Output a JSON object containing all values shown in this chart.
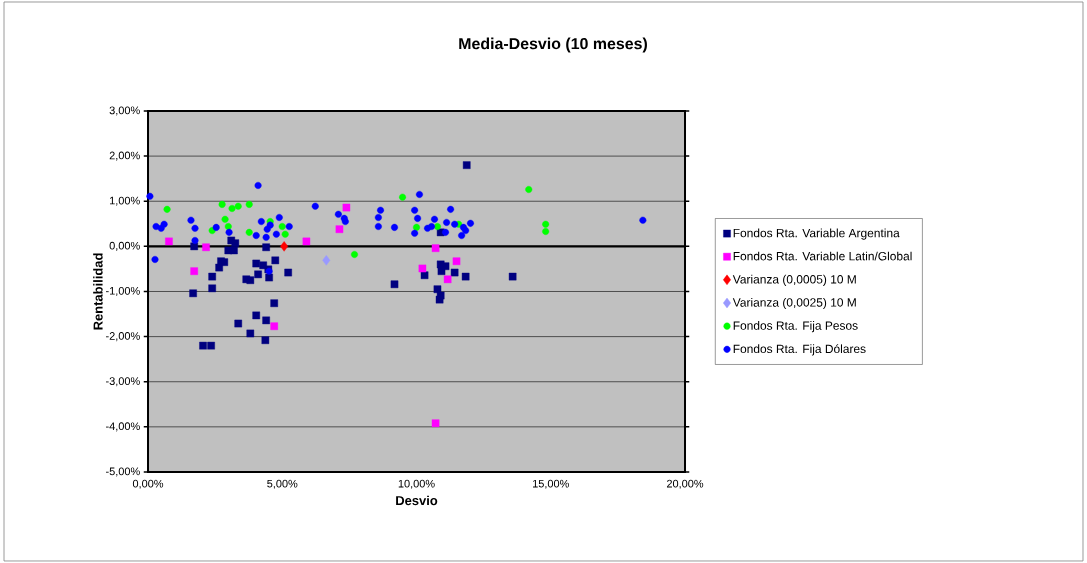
{
  "chart_data": {
    "type": "scatter",
    "title": "Media-Desvio (10 meses)",
    "xlabel": "Desvio",
    "ylabel": "Rentabilidad",
    "xlim": [
      0,
      20
    ],
    "ylim": [
      -5,
      3
    ],
    "xticks": [
      {
        "value": 0,
        "label": "0,00%"
      },
      {
        "value": 5,
        "label": "5,00%"
      },
      {
        "value": 10,
        "label": "10,00%"
      },
      {
        "value": 15,
        "label": "15,00%"
      },
      {
        "value": 20,
        "label": "20,00%"
      }
    ],
    "yticks": [
      {
        "value": -5,
        "label": "-5,00%"
      },
      {
        "value": -4,
        "label": "-4,00%"
      },
      {
        "value": -3,
        "label": "-3,00%"
      },
      {
        "value": -2,
        "label": "-2,00%"
      },
      {
        "value": -1,
        "label": "-1,00%"
      },
      {
        "value": 0,
        "label": "0,00%"
      },
      {
        "value": 1,
        "label": "1,00%"
      },
      {
        "value": 2,
        "label": "2,00%"
      },
      {
        "value": 3,
        "label": "3,00%"
      }
    ],
    "grid": "y",
    "legend": "right",
    "ref_lines": [
      {
        "axis": "y",
        "value": 0,
        "color": "#000000"
      }
    ],
    "series": [
      {
        "name": "Fondos Rta. Variable Argentina",
        "color": "#000080",
        "marker": "square",
        "x": [
          1.68,
          1.72,
          2.05,
          2.35,
          2.39,
          2.39,
          2.65,
          2.72,
          2.84,
          2.99,
          3.1,
          3.25,
          3.2,
          3.36,
          3.66,
          3.81,
          3.81,
          4.03,
          4.03,
          4.1,
          4.29,
          4.37,
          4.4,
          4.4,
          4.48,
          4.51,
          4.74,
          4.7,
          5.22,
          9.18,
          10.3,
          10.78,
          10.9,
          10.93,
          10.86,
          10.9,
          11.08,
          11.42,
          11.87,
          11.83,
          13.58,
          10.9
        ],
        "values": [
          -1.04,
          0,
          -2.2,
          -2.2,
          -0.67,
          -0.93,
          -0.47,
          -0.33,
          -0.35,
          -0.09,
          0.13,
          0.07,
          -0.09,
          -1.71,
          -0.73,
          -0.75,
          -1.93,
          -1.53,
          -0.38,
          -0.62,
          -0.42,
          -2.08,
          -1.64,
          -0.02,
          -0.51,
          -0.69,
          -0.31,
          -1.26,
          -0.58,
          -0.84,
          -0.64,
          -0.95,
          -0.4,
          -0.55,
          -1.18,
          -1.09,
          -0.44,
          -0.58,
          1.8,
          -0.67,
          -0.67,
          0.31
        ]
      },
      {
        "name": "Fondos Rta. Variable Latin/Global",
        "color": "#ff00ff",
        "marker": "square",
        "x": [
          0.78,
          1.72,
          2.16,
          4.7,
          5.9,
          7.13,
          7.39,
          10.22,
          10.71,
          10.71,
          11.16,
          11.49
        ],
        "values": [
          0.11,
          -0.55,
          -0.02,
          -1.77,
          0.11,
          0.38,
          0.86,
          -0.49,
          -0.04,
          -3.92,
          -0.73,
          -0.33
        ]
      },
      {
        "name": "Varianza (0,0005) 10 M",
        "color": "#ff0000",
        "marker": "diamond",
        "x": [
          5.07
        ],
        "values": [
          0.0
        ]
      },
      {
        "name": "Varianza (0,0025) 10 M",
        "color": "#9999ff",
        "marker": "diamond",
        "x": [
          6.64
        ],
        "values": [
          -0.31
        ]
      },
      {
        "name": "Fondos Rta.  Fija Pesos",
        "color": "#00ff00",
        "marker": "circle",
        "x": [
          0.71,
          2.39,
          2.76,
          2.87,
          2.99,
          3.13,
          3.36,
          3.77,
          3.77,
          4.55,
          5.0,
          5.11,
          7.69,
          9.48,
          10.0,
          10.78,
          11.57,
          14.18,
          14.81,
          14.81
        ],
        "values": [
          0.82,
          0.35,
          0.93,
          0.6,
          0.44,
          0.84,
          0.89,
          0.93,
          0.31,
          0.55,
          0.44,
          0.27,
          -0.18,
          1.09,
          0.42,
          0.44,
          0.49,
          1.26,
          0.49,
          0.33
        ]
      },
      {
        "name": "Fondos Rta. Fija Dólares",
        "color": "#0000ff",
        "marker": "circle",
        "x": [
          0.07,
          0.26,
          0.3,
          0.49,
          0.6,
          1.6,
          1.75,
          1.75,
          2.54,
          3.02,
          4.1,
          4.03,
          4.22,
          4.4,
          4.44,
          4.55,
          4.89,
          4.78,
          5.26,
          4.51,
          6.23,
          7.09,
          7.31,
          7.35,
          8.58,
          8.66,
          8.58,
          9.18,
          9.93,
          10.04,
          10.11,
          9.93,
          10.41,
          10.67,
          10.56,
          11.27,
          11.12,
          11.42,
          11.75,
          11.68,
          11.83,
          12.01,
          18.43,
          11.08
        ],
        "values": [
          1.11,
          -0.29,
          0.44,
          0.4,
          0.49,
          0.58,
          0.4,
          0.13,
          0.42,
          0.31,
          1.35,
          0.24,
          0.55,
          0.2,
          0.38,
          0.47,
          0.64,
          0.27,
          0.44,
          -0.55,
          0.89,
          0.71,
          0.62,
          0.55,
          0.64,
          0.8,
          0.44,
          0.42,
          0.8,
          0.62,
          1.15,
          0.29,
          0.4,
          0.6,
          0.44,
          0.82,
          0.53,
          0.49,
          0.42,
          0.24,
          0.35,
          0.51,
          0.58,
          0.31
        ]
      }
    ]
  }
}
